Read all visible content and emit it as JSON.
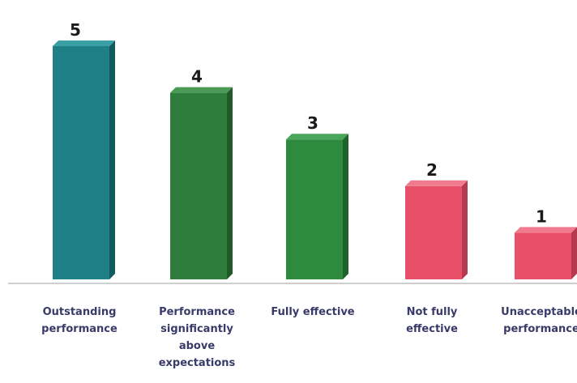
{
  "chart_data": {
    "type": "bar",
    "title": "",
    "xlabel": "",
    "ylabel": "",
    "ylim": [
      0,
      5.4
    ],
    "grid": false,
    "categories": [
      [
        "Outstanding",
        "performance"
      ],
      [
        "Performance",
        "significantly",
        "above",
        "expectations"
      ],
      [
        "Fully effective"
      ],
      [
        "Not fully",
        "effective"
      ],
      [
        "Unacceptable",
        "performance"
      ]
    ],
    "values": [
      5,
      4,
      3,
      2,
      1
    ],
    "data_labels": [
      "5",
      "4",
      "3",
      "2",
      "1"
    ],
    "colors": [
      "#1e7f86",
      "#2f7d3c",
      "#2e8a3e",
      "#e8506a",
      "#e8506a"
    ],
    "side_colors": [
      "#125a60",
      "#1f5a29",
      "#1f632b",
      "#b53a4f",
      "#b53a4f"
    ],
    "top_colors": [
      "#3aa0a6",
      "#4a9a56",
      "#4aa65a",
      "#f07a8e",
      "#f07a8e"
    ]
  }
}
